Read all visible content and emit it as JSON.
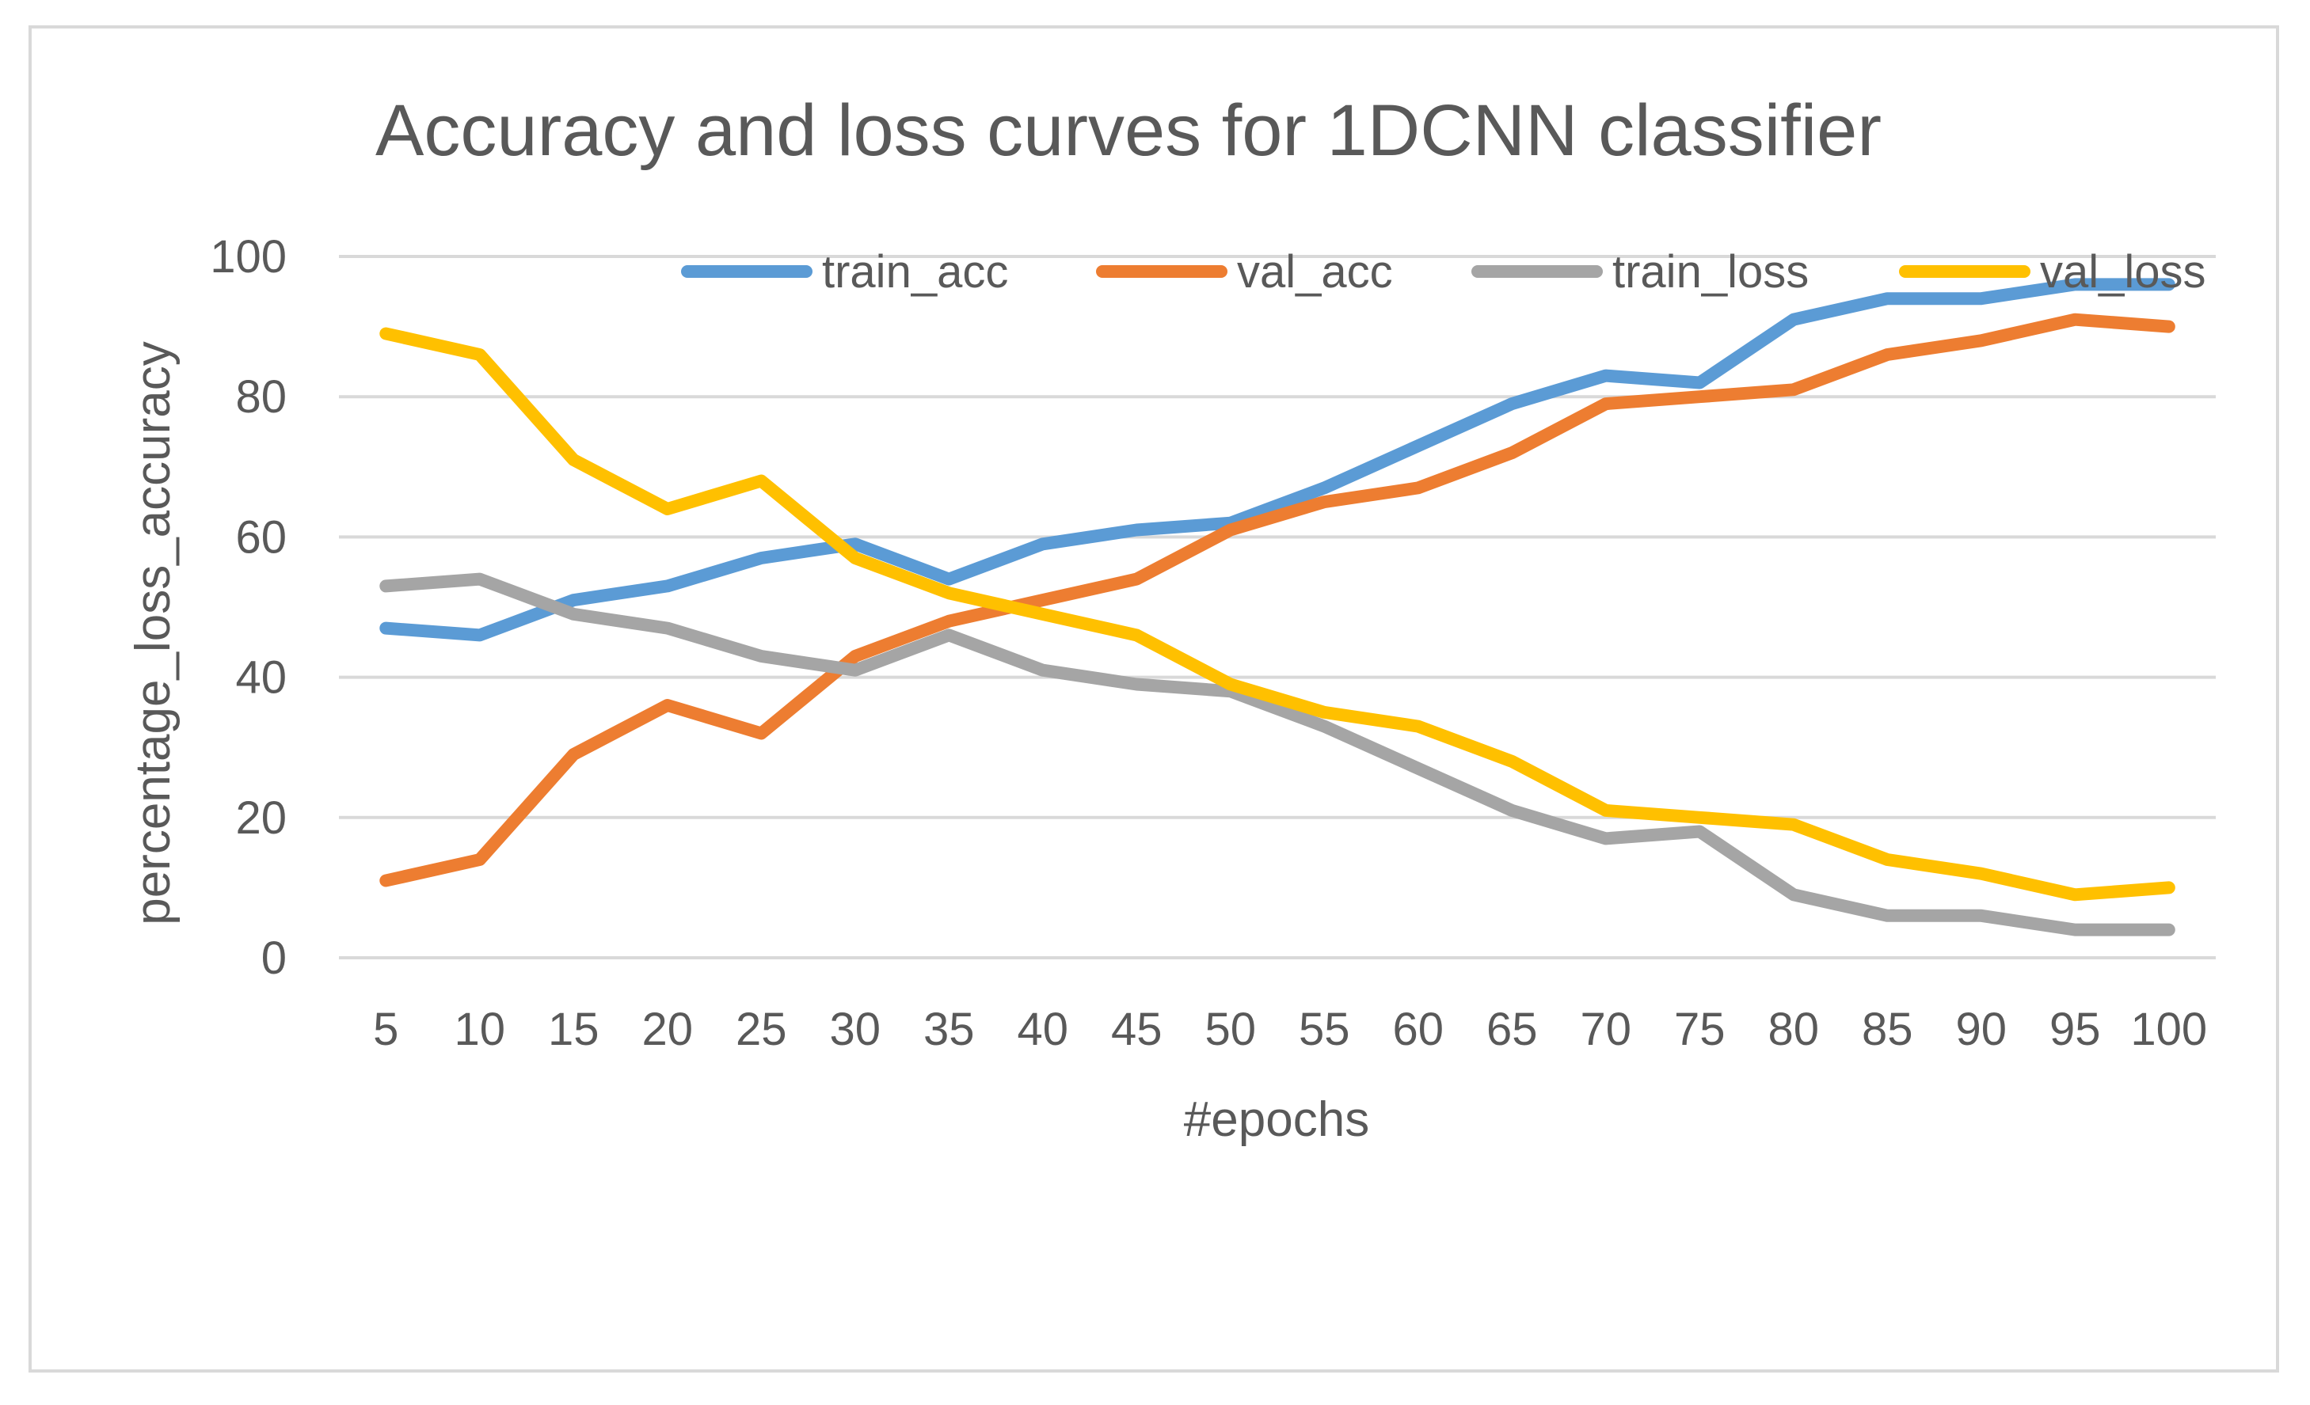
{
  "chart_data": {
    "type": "line",
    "title": "Accuracy and loss curves for 1DCNN classifier",
    "xlabel": "#epochs",
    "ylabel": "percentage_loss_accuracy",
    "ylim": [
      0,
      100
    ],
    "yticks": [
      0,
      20,
      40,
      60,
      80,
      100
    ],
    "grid": true,
    "legend_position": "top",
    "categories": [
      "5",
      "10",
      "15",
      "20",
      "25",
      "30",
      "35",
      "40",
      "45",
      "50",
      "55",
      "60",
      "65",
      "70",
      "75",
      "80",
      "85",
      "90",
      "95",
      "100"
    ],
    "series": [
      {
        "name": "train_acc",
        "color": "#5B9BD5",
        "values": [
          47,
          46,
          51,
          53,
          57,
          59,
          54,
          59,
          61,
          62,
          67,
          73,
          79,
          83,
          82,
          91,
          94,
          94,
          96,
          96
        ]
      },
      {
        "name": "val_acc",
        "color": "#ED7D31",
        "values": [
          11,
          14,
          29,
          36,
          32,
          43,
          48,
          51,
          54,
          61,
          65,
          67,
          72,
          79,
          80,
          81,
          86,
          88,
          91,
          90
        ]
      },
      {
        "name": "train_loss",
        "color": "#A5A5A5",
        "values": [
          53,
          54,
          49,
          47,
          43,
          41,
          46,
          41,
          39,
          38,
          33,
          27,
          21,
          17,
          18,
          9,
          6,
          6,
          4,
          4
        ]
      },
      {
        "name": "val_loss",
        "color": "#FFC000",
        "values": [
          89,
          86,
          71,
          64,
          68,
          57,
          52,
          49,
          46,
          39,
          35,
          33,
          28,
          21,
          20,
          19,
          14,
          12,
          9,
          10
        ]
      }
    ]
  }
}
